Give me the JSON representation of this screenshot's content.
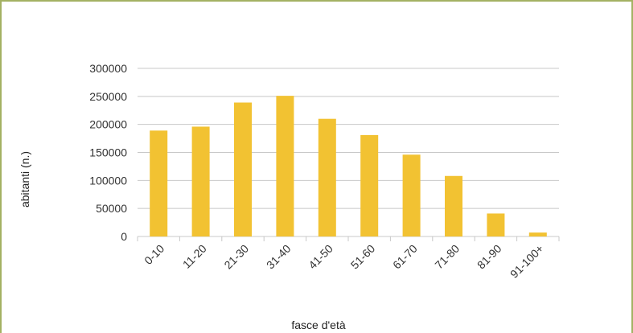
{
  "chart_data": {
    "type": "bar",
    "title": "",
    "xlabel": "fasce d'età",
    "ylabel": "abitanti (n.)",
    "categories": [
      "0-10",
      "11-20",
      "21-30",
      "31-40",
      "41-50",
      "51-60",
      "61-70",
      "71-80",
      "81-90",
      "91-100+"
    ],
    "values": [
      189000,
      196000,
      239000,
      251000,
      210000,
      181000,
      146000,
      108000,
      41000,
      7000
    ],
    "ylim": [
      0,
      300000
    ],
    "yticks": [
      "0",
      "50000",
      "100000",
      "150000",
      "200000",
      "250000",
      "300000"
    ],
    "grid": true,
    "legend": "none"
  },
  "colors": {
    "bar": "#f2c232",
    "grid": "#c8c8c8",
    "frame": "#a4b163"
  }
}
